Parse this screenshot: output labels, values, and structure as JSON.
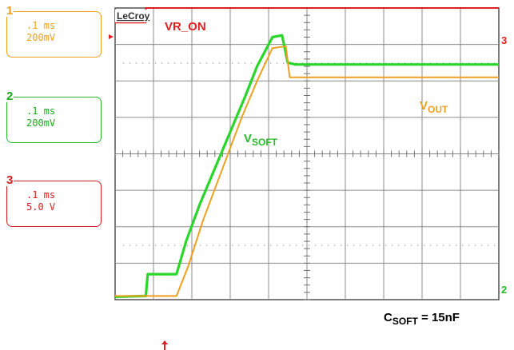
{
  "channels": [
    {
      "num": "1",
      "timebase": ".1 ms",
      "scale": "200mV",
      "color": "#f0a020"
    },
    {
      "num": "2",
      "timebase": ".1 ms",
      "scale": "200mV",
      "color": "#2ab82a"
    },
    {
      "num": "3",
      "timebase": ".1 ms",
      "scale": "5.0 V",
      "color": "#d02020"
    }
  ],
  "logo": "LeCroy",
  "markers": {
    "right_ch3": "3",
    "right_ch2": "2"
  },
  "annotations": {
    "vr_on": "VR_ON",
    "vsoft_main": "V",
    "vsoft_sub": "SOFT",
    "vout_main": "V",
    "vout_sub": "OUT",
    "csoft_main": "C",
    "csoft_sub": "SOFT",
    "csoft_value": " = 15nF"
  },
  "chart_data": {
    "type": "line",
    "grid": true,
    "divisions": {
      "x": 10,
      "y": 8
    },
    "xlim": [
      0,
      10
    ],
    "ylim": [
      0,
      8
    ],
    "series": [
      {
        "name": "VR_ON",
        "color": "#e02020",
        "points": [
          [
            0,
            7.6
          ],
          [
            0.8,
            7.6
          ],
          [
            0.8,
            8.0
          ],
          [
            10,
            8.0
          ]
        ]
      },
      {
        "name": "VSOFT",
        "color": "#2ad62a",
        "points": [
          [
            0,
            0.08
          ],
          [
            0.8,
            0.1
          ],
          [
            0.85,
            0.7
          ],
          [
            1.6,
            0.7
          ],
          [
            1.85,
            1.6
          ],
          [
            2.2,
            2.6
          ],
          [
            2.6,
            3.6
          ],
          [
            3.0,
            4.6
          ],
          [
            3.4,
            5.6
          ],
          [
            3.7,
            6.4
          ],
          [
            4.1,
            7.2
          ],
          [
            4.35,
            7.25
          ],
          [
            4.5,
            6.5
          ],
          [
            4.7,
            6.45
          ],
          [
            10,
            6.45
          ]
        ]
      },
      {
        "name": "VOUT",
        "color": "#f0a020",
        "points": [
          [
            0,
            0.1
          ],
          [
            1.6,
            0.1
          ],
          [
            1.9,
            0.9
          ],
          [
            2.3,
            2.2
          ],
          [
            2.8,
            3.6
          ],
          [
            3.3,
            5.0
          ],
          [
            3.7,
            6.0
          ],
          [
            4.1,
            6.9
          ],
          [
            4.45,
            6.95
          ],
          [
            4.55,
            6.1
          ],
          [
            10,
            6.1
          ]
        ]
      }
    ]
  }
}
